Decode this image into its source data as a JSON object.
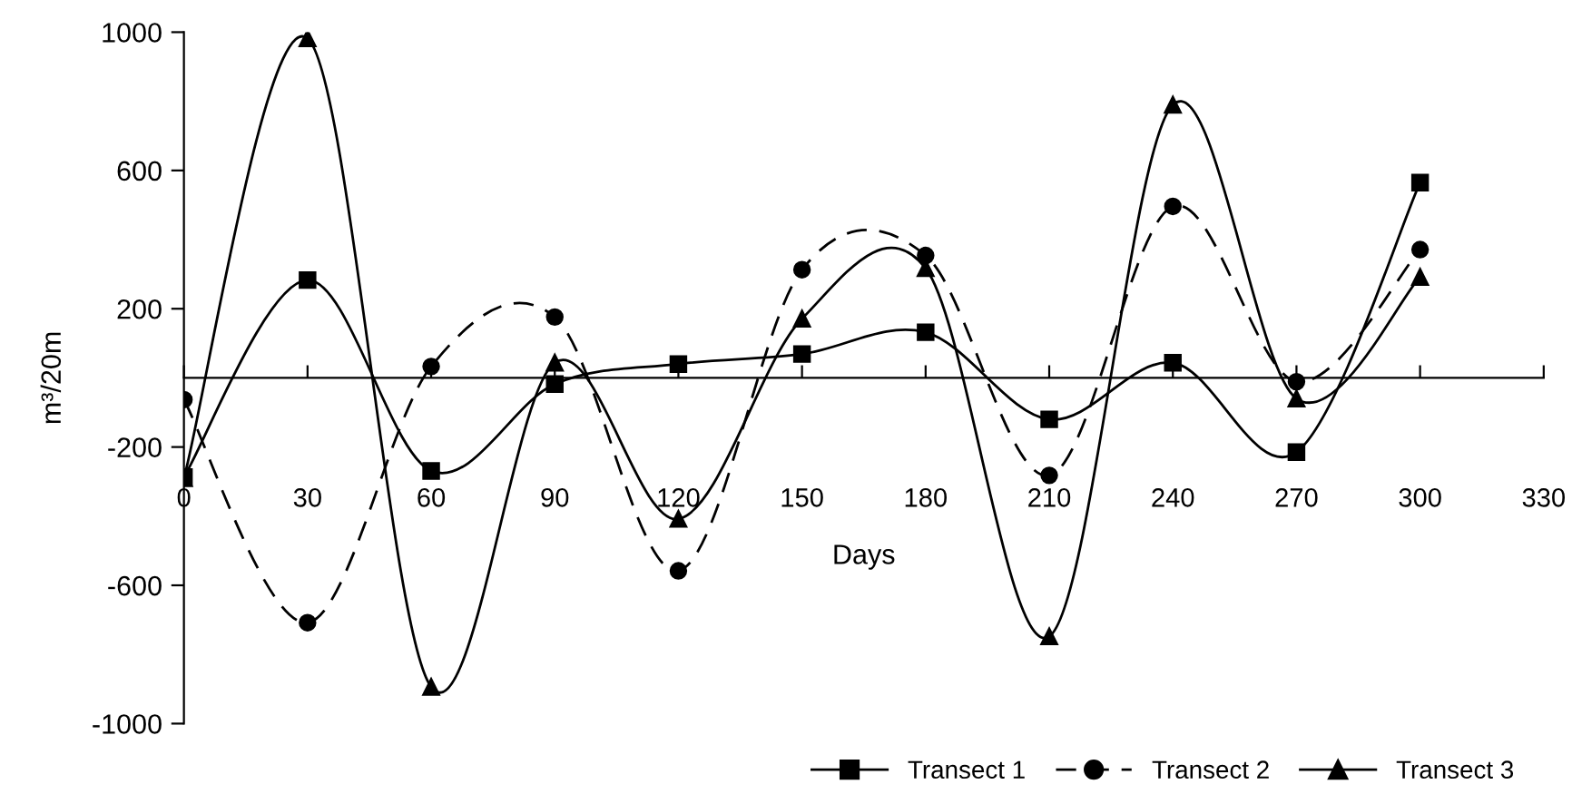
{
  "chart_data": {
    "type": "line",
    "xlabel": "Days",
    "ylabel": "m³/20m",
    "x": [
      0,
      30,
      60,
      90,
      120,
      150,
      180,
      210,
      240,
      270,
      300
    ],
    "series": [
      {
        "name": "Transect 1",
        "color": "#000000",
        "marker": "square",
        "line_style": "solid",
        "values": [
          -287,
          283,
          -269,
          -18,
          40,
          69,
          132,
          -120,
          44,
          -215,
          565
        ]
      },
      {
        "name": "Transect 2",
        "color": "#000000",
        "marker": "circle",
        "line_style": "dashed",
        "values": [
          -63,
          -708,
          33,
          176,
          -558,
          313,
          354,
          -282,
          496,
          -11,
          371
        ]
      },
      {
        "name": "Transect 3",
        "color": "#000000",
        "marker": "triangle",
        "line_style": "solid",
        "values": [
          -290,
          982,
          -894,
          44,
          -408,
          171,
          317,
          -748,
          790,
          -60,
          292
        ]
      }
    ],
    "xlim": [
      0,
      330
    ],
    "xticks": [
      0,
      30,
      60,
      90,
      120,
      150,
      180,
      210,
      240,
      270,
      300,
      330
    ],
    "ylim": [
      -1000,
      1000
    ],
    "yticks": [
      -1000,
      -600,
      -200,
      200,
      600,
      1000
    ],
    "grid": false,
    "legend": "bottom"
  }
}
